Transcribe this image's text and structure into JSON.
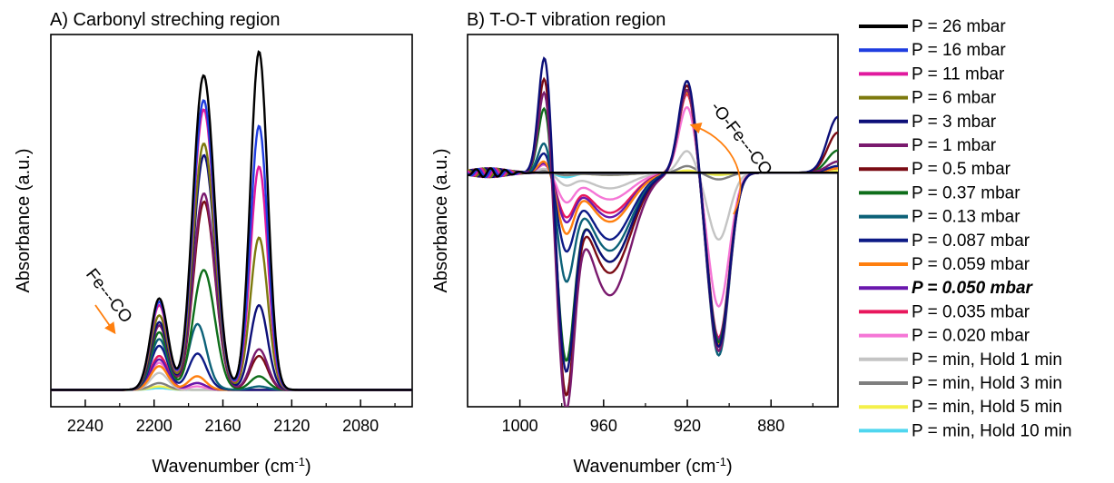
{
  "chart_data": [
    {
      "type": "line",
      "panel": "A",
      "title": "A) Carbonyl streching region",
      "xlabel": "Wavenumber (cm",
      "xlabel_sup": "-1",
      "xlabel_end": ")",
      "ylabel": "Absorbance (a.u.)",
      "xlim": [
        2260,
        2050
      ],
      "xticks": [
        2240,
        2200,
        2160,
        2120,
        2080
      ],
      "xtick_labels": [
        "2240",
        "2200",
        "2160",
        "2120",
        "2080"
      ],
      "ylim": [
        -0.05,
        1.05
      ],
      "annotation": "Fe---CO",
      "peaks": [
        2197,
        2175,
        2170,
        2139
      ],
      "widths": [
        5,
        5,
        6,
        5
      ],
      "series": [
        {
          "name": "P = 26 mbar",
          "amps": [
            0.27,
            0.22,
            0.78,
            1.0
          ]
        },
        {
          "name": "P = 16 mbar",
          "amps": [
            0.26,
            0.2,
            0.72,
            0.78
          ]
        },
        {
          "name": "P = 11 mbar",
          "amps": [
            0.25,
            0.19,
            0.7,
            0.66
          ]
        },
        {
          "name": "P = 6 mbar",
          "amps": [
            0.22,
            0.16,
            0.62,
            0.45
          ]
        },
        {
          "name": "P = 3 mbar",
          "amps": [
            0.2,
            0.14,
            0.6,
            0.25
          ]
        },
        {
          "name": "P = 1 mbar",
          "amps": [
            0.19,
            0.12,
            0.5,
            0.12
          ]
        },
        {
          "name": "P = 0.5 mbar",
          "amps": [
            0.19,
            0.1,
            0.49,
            0.1
          ]
        },
        {
          "name": "P = 0.37 mbar",
          "amps": [
            0.17,
            0.08,
            0.3,
            0.04
          ]
        },
        {
          "name": "P = 0.13 mbar",
          "amps": [
            0.15,
            0.18,
            0.02,
            0.01
          ]
        },
        {
          "name": "P = 0.087 mbar",
          "amps": [
            0.13,
            0.1,
            0.01,
            0.0
          ]
        },
        {
          "name": "P = 0.059 mbar",
          "amps": [
            0.07,
            0.04,
            0.0,
            0.0
          ]
        },
        {
          "name": "P = 0.050 mbar",
          "amps": [
            0.09,
            0.02,
            0.0,
            0.0
          ]
        },
        {
          "name": "P = 0.035 mbar",
          "amps": [
            0.1,
            0.02,
            0.0,
            0.0
          ]
        },
        {
          "name": "P = 0.020 mbar",
          "amps": [
            0.08,
            0.01,
            0.0,
            0.0
          ]
        },
        {
          "name": "P = min, Hold 1 min",
          "amps": [
            0.05,
            0.0,
            0.0,
            0.0
          ]
        },
        {
          "name": "P = min, Hold 3 min",
          "amps": [
            0.02,
            0.0,
            0.0,
            0.0
          ]
        },
        {
          "name": "P = min, Hold 5 min",
          "amps": [
            0.01,
            0.0,
            0.0,
            0.0
          ]
        },
        {
          "name": "P = min, Hold 10 min",
          "amps": [
            0.005,
            0.0,
            0.0,
            0.0
          ]
        }
      ]
    },
    {
      "type": "line",
      "panel": "B",
      "title": "B) T-O-T vibration region",
      "xlabel": "Wavenumber (cm",
      "xlabel_sup": "-1",
      "xlabel_end": ")",
      "ylabel": "Absorbance (a.u.)",
      "xlim": [
        1025,
        848
      ],
      "xticks": [
        1000,
        960,
        920,
        880
      ],
      "xtick_labels": [
        "1000",
        "960",
        "920",
        "880"
      ],
      "ylim": [
        -1.05,
        0.62
      ],
      "annotation": "-O-Fe---CO",
      "peaks": [
        988,
        978,
        957,
        920,
        905,
        848
      ],
      "widths": [
        3,
        4,
        10,
        4,
        5,
        5
      ],
      "series": [
        {
          "name": "P = 26 mbar",
          "amps": [
            0,
            0,
            0,
            0,
            0,
            0
          ]
        },
        {
          "name": "P = 16 mbar",
          "amps": [
            0,
            0,
            0,
            0,
            0,
            0
          ]
        },
        {
          "name": "P = 11 mbar",
          "amps": [
            0,
            0,
            0,
            0,
            0,
            0
          ]
        },
        {
          "name": "P = 6 mbar",
          "amps": [
            0,
            0,
            0,
            0,
            0,
            0
          ]
        },
        {
          "name": "P = 3 mbar",
          "amps": [
            0.55,
            -0.85,
            -0.4,
            0.42,
            -0.78,
            0.25
          ]
        },
        {
          "name": "P = 1 mbar",
          "amps": [
            0.4,
            -1.0,
            -0.55,
            0.38,
            -0.8,
            0.05
          ]
        },
        {
          "name": "P = 0.5 mbar",
          "amps": [
            0.46,
            -0.95,
            -0.45,
            0.4,
            -0.78,
            0.18
          ]
        },
        {
          "name": "P = 0.37 mbar",
          "amps": [
            0.32,
            -0.8,
            -0.4,
            0.38,
            -0.76,
            0.1
          ]
        },
        {
          "name": "P = 0.13 mbar",
          "amps": [
            0.15,
            -0.45,
            -0.35,
            0.38,
            -0.82,
            0.05
          ]
        },
        {
          "name": "P = 0.087 mbar",
          "amps": [
            0.1,
            -0.32,
            -0.3,
            0.38,
            -0.8,
            0.03
          ]
        },
        {
          "name": "P = 0.059 mbar",
          "amps": [
            0.06,
            -0.25,
            -0.22,
            0.37,
            -0.77,
            0.02
          ]
        },
        {
          "name": "P = 0.050 mbar",
          "amps": [
            0.05,
            -0.2,
            -0.2,
            0.38,
            -0.75,
            0.02
          ]
        },
        {
          "name": "P = 0.035 mbar",
          "amps": [
            0.05,
            -0.18,
            -0.18,
            0.36,
            -0.74,
            0.02
          ]
        },
        {
          "name": "P = 0.020 mbar",
          "amps": [
            0.04,
            -0.12,
            -0.12,
            0.3,
            -0.6,
            0.02
          ]
        },
        {
          "name": "P = min, Hold 1 min",
          "amps": [
            0.02,
            -0.05,
            -0.07,
            0.1,
            -0.3,
            0.02
          ]
        },
        {
          "name": "P = min, Hold 3 min",
          "amps": [
            0.01,
            -0.01,
            -0.01,
            0.03,
            -0.03,
            0.02
          ]
        },
        {
          "name": "P = min, Hold 5 min",
          "amps": [
            0.005,
            -0.01,
            -0.01,
            0.01,
            -0.01,
            0.01
          ]
        },
        {
          "name": "P = min, Hold 10 min",
          "amps": [
            0.005,
            -0.02,
            -0.005,
            0.0,
            -0.01,
            0.01
          ]
        }
      ]
    }
  ],
  "legend": {
    "placement": "right",
    "items": [
      {
        "label": "P = 26 mbar",
        "color": "#000000"
      },
      {
        "label": "P = 16 mbar",
        "color": "#1f3de0"
      },
      {
        "label": "P = 11 mbar",
        "color": "#e0199e"
      },
      {
        "label": "P = 6 mbar",
        "color": "#7d7a0e"
      },
      {
        "label": "P = 3 mbar",
        "color": "#0c0f78"
      },
      {
        "label": "P = 1 mbar",
        "color": "#7a1a6e"
      },
      {
        "label": "P = 0.5 mbar",
        "color": "#7a0b14"
      },
      {
        "label": "P = 0.37 mbar",
        "color": "#0e6e1a"
      },
      {
        "label": "P = 0.13 mbar",
        "color": "#0c6178"
      },
      {
        "label": "P = 0.087 mbar",
        "color": "#0d1a86"
      },
      {
        "label": "P = 0.059 mbar",
        "color": "#ff7f0e"
      },
      {
        "label": "P = 0.050 mbar",
        "color": "#6a17ad",
        "emphasis": true
      },
      {
        "label": "P = 0.035 mbar",
        "color": "#e8175c"
      },
      {
        "label": "P = 0.020 mbar",
        "color": "#f576d6"
      },
      {
        "label": "P = min, Hold 1 min",
        "color": "#c4c4c4"
      },
      {
        "label": "P = min, Hold 3 min",
        "color": "#7f7f7f"
      },
      {
        "label": "P = min, Hold 5 min",
        "color": "#f4f04a"
      },
      {
        "label": "P = min, Hold 10 min",
        "color": "#4fd6ef"
      }
    ]
  }
}
